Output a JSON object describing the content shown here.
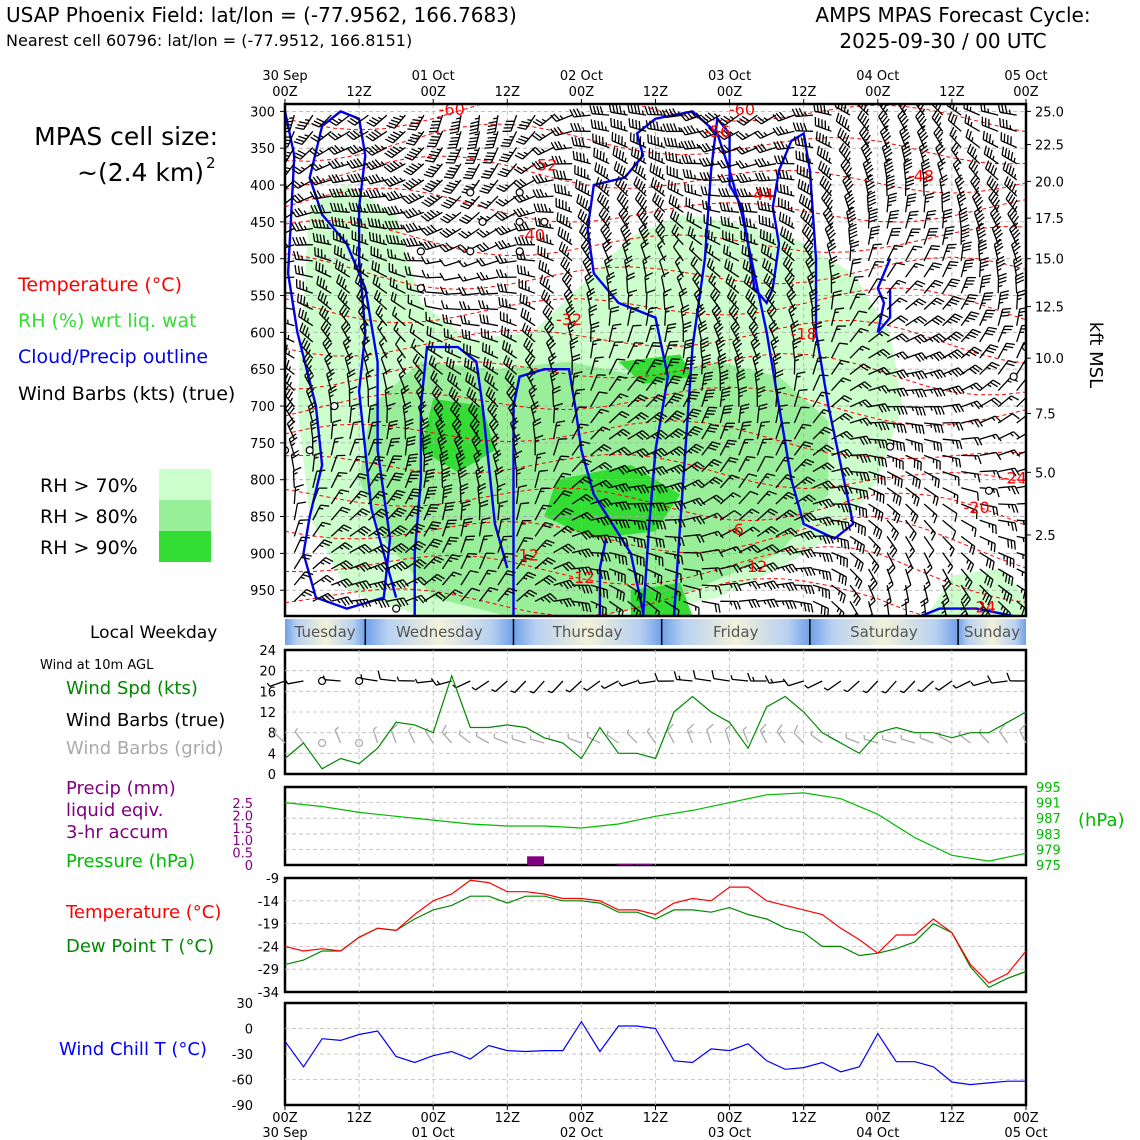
{
  "header": {
    "title_left": "USAP Phoenix Field: lat/lon = (-77.9562, 166.7683)",
    "subtitle_left": "Nearest cell 60796: lat/lon = (-77.9512, 166.8151)",
    "title_right_1": "AMPS MPAS Forecast Cycle:",
    "title_right_2": "2025-09-30 / 00 UTC"
  },
  "left_labels": {
    "cell_size_1": "MPAS cell size:",
    "cell_size_2": "~(2.4 km)",
    "cell_size_sup": "2",
    "temperature": "Temperature (°C)",
    "rh": "RH (%) wrt liq. wat",
    "cloud": "Cloud/Precip outline",
    "wind": "Wind Barbs (kts) (true)",
    "rh70": "RH > 70%",
    "rh80": "RH > 80%",
    "rh90": "RH > 90%",
    "local_weekday": "Local Weekday",
    "wind10m": "Wind at 10m AGL",
    "wind_spd": "Wind Spd (kts)",
    "wind_barbs_true": "Wind Barbs (true)",
    "wind_barbs_grid": "Wind Barbs (grid)",
    "precip_1": "Precip (mm)",
    "precip_2": "liquid eqiv.",
    "precip_3": "3-hr accum",
    "pressure": "Pressure (hPa)",
    "temp2": "Temperature (°C)",
    "dew": "Dew Point T (°C)",
    "windchill": "Wind Chill T (°C)"
  },
  "colors": {
    "temp": "#ff0000",
    "rh_label": "#33dd33",
    "cloud": "#0000ee",
    "rh70": "#ccffcc",
    "rh80": "#99ee99",
    "rh90": "#33dd33",
    "wind_spd": "#008800",
    "grid_barb": "#aaaaaa",
    "precip": "#800080",
    "pressure": "#00bb00",
    "dew": "#008800",
    "windchill": "#0000ff"
  },
  "time_axis": {
    "top_ticks": [
      {
        "t": 0,
        "l1": "30 Sep",
        "l2": "00Z"
      },
      {
        "t": 12,
        "l1": "",
        "l2": "12Z"
      },
      {
        "t": 24,
        "l1": "01 Oct",
        "l2": "00Z"
      },
      {
        "t": 36,
        "l1": "",
        "l2": "12Z"
      },
      {
        "t": 48,
        "l1": "02 Oct",
        "l2": "00Z"
      },
      {
        "t": 60,
        "l1": "",
        "l2": "12Z"
      },
      {
        "t": 72,
        "l1": "03 Oct",
        "l2": "00Z"
      },
      {
        "t": 84,
        "l1": "",
        "l2": "12Z"
      },
      {
        "t": 96,
        "l1": "04 Oct",
        "l2": "00Z"
      },
      {
        "t": 108,
        "l1": "",
        "l2": "12Z"
      },
      {
        "t": 120,
        "l1": "05 Oct",
        "l2": "00Z"
      }
    ],
    "bottom_ticks": [
      {
        "t": 0,
        "l1": "00Z",
        "l2": "30 Sep"
      },
      {
        "t": 12,
        "l1": "12Z",
        "l2": ""
      },
      {
        "t": 24,
        "l1": "00Z",
        "l2": "01 Oct"
      },
      {
        "t": 36,
        "l1": "12Z",
        "l2": ""
      },
      {
        "t": 48,
        "l1": "00Z",
        "l2": "02 Oct"
      },
      {
        "t": 60,
        "l1": "12Z",
        "l2": ""
      },
      {
        "t": 72,
        "l1": "00Z",
        "l2": "03 Oct"
      },
      {
        "t": 84,
        "l1": "12Z",
        "l2": ""
      },
      {
        "t": 96,
        "l1": "00Z",
        "l2": "04 Oct"
      },
      {
        "t": 108,
        "l1": "12Z",
        "l2": ""
      },
      {
        "t": 120,
        "l1": "00Z",
        "l2": "05 Oct"
      }
    ]
  },
  "weekdays": [
    {
      "name": "Tuesday",
      "start": 0,
      "end": 13
    },
    {
      "name": "Wednesday",
      "start": 13,
      "end": 37
    },
    {
      "name": "Thursday",
      "start": 37,
      "end": 61
    },
    {
      "name": "Friday",
      "start": 61,
      "end": 85
    },
    {
      "name": "Saturday",
      "start": 85,
      "end": 109
    },
    {
      "name": "Sunday",
      "start": 109,
      "end": 120
    }
  ],
  "chart_data": [
    {
      "type": "heatmap",
      "name": "time-height cross section",
      "x_range_hours": [
        0,
        120
      ],
      "y_pressure_ticks": [
        300,
        350,
        400,
        450,
        500,
        550,
        600,
        650,
        700,
        750,
        800,
        850,
        900,
        950
      ],
      "y_pressure_range": [
        290,
        985
      ],
      "right_kft_ticks": [
        {
          "p": 300,
          "l": "25.0"
        },
        {
          "p": 345,
          "l": "22.5"
        },
        {
          "p": 395,
          "l": "20.0"
        },
        {
          "p": 445,
          "l": "17.5"
        },
        {
          "p": 500,
          "l": "15.0"
        },
        {
          "p": 565,
          "l": "12.5"
        },
        {
          "p": 635,
          "l": "10.0"
        },
        {
          "p": 710,
          "l": "7.5"
        },
        {
          "p": 790,
          "l": "5.0"
        },
        {
          "p": 875,
          "l": "2.5"
        }
      ],
      "right_axis_label": "kft MSL",
      "temperature_labels": [
        {
          "t": 27,
          "p": 305,
          "l": "-60"
        },
        {
          "t": 42,
          "p": 380,
          "l": "-52"
        },
        {
          "t": 40,
          "p": 475,
          "l": "-40"
        },
        {
          "t": 46,
          "p": 590,
          "l": "-32"
        },
        {
          "t": 74,
          "p": 305,
          "l": "-60"
        },
        {
          "t": 70,
          "p": 335,
          "l": "-56"
        },
        {
          "t": 77,
          "p": 420,
          "l": "-44"
        },
        {
          "t": 103,
          "p": 395,
          "l": "-48"
        },
        {
          "t": 84,
          "p": 610,
          "l": "-18"
        },
        {
          "t": 39,
          "p": 910,
          "l": "-12"
        },
        {
          "t": 48,
          "p": 940,
          "l": "-12"
        },
        {
          "t": 76,
          "p": 925,
          "l": "-12"
        },
        {
          "t": 73,
          "p": 875,
          "l": "-6"
        },
        {
          "t": 112,
          "p": 845,
          "l": "-20"
        },
        {
          "t": 118,
          "p": 805,
          "l": "-24"
        },
        {
          "t": 113,
          "p": 980,
          "l": "-24"
        }
      ],
      "rh_thresholds": [
        "RH > 70%",
        "RH > 80%",
        "RH > 90%"
      ]
    },
    {
      "type": "line",
      "name": "Wind speed at 10m",
      "ylabel": "Wind Spd (kts)",
      "ylim": [
        0,
        24
      ],
      "yticks": [
        0,
        4,
        8,
        12,
        16,
        20,
        24
      ],
      "x": [
        0,
        3,
        6,
        9,
        12,
        15,
        18,
        21,
        24,
        27,
        30,
        33,
        36,
        39,
        42,
        45,
        48,
        51,
        54,
        57,
        60,
        63,
        66,
        69,
        72,
        75,
        78,
        81,
        84,
        87,
        90,
        93,
        96,
        99,
        102,
        105,
        108,
        111,
        114,
        117,
        120
      ],
      "values": [
        3,
        6,
        1,
        3,
        2,
        5,
        10,
        9.5,
        8,
        19,
        9,
        9,
        9.5,
        9,
        7,
        6,
        3,
        9,
        4,
        4,
        3,
        12,
        15,
        12,
        10,
        5,
        13,
        15,
        12,
        8,
        6,
        4,
        8,
        9,
        8,
        8,
        7,
        8,
        8,
        10,
        12
      ]
    },
    {
      "type": "line",
      "name": "Pressure",
      "ylabel": "Pressure (hPa)",
      "y_right_ticks": [
        975,
        979,
        983,
        987,
        991,
        995
      ],
      "y_left_precip_ticks": [
        "0",
        "0.5",
        "1.0",
        "1.5",
        "2.0",
        "2.5"
      ],
      "unit_label": "(hPa)",
      "x": [
        0,
        6,
        12,
        18,
        24,
        30,
        36,
        42,
        48,
        54,
        60,
        66,
        72,
        78,
        84,
        90,
        96,
        102,
        108,
        114,
        120
      ],
      "values": [
        991,
        990,
        988.5,
        987.5,
        986.5,
        985.5,
        985,
        985,
        984.5,
        985.5,
        987.5,
        989,
        991,
        993,
        993.5,
        992,
        988,
        982,
        977.5,
        976,
        978
      ],
      "precip_bars": [
        {
          "t": 40.5,
          "mm": 0.35
        },
        {
          "t": 55,
          "mm": 0.05
        },
        {
          "t": 58,
          "mm": 0.05
        }
      ]
    },
    {
      "type": "line",
      "name": "Temperature and dew point",
      "ylim": [
        -34,
        -9
      ],
      "yticks": [
        -9,
        -14,
        -19,
        -24,
        -29,
        -34
      ],
      "x": [
        0,
        3,
        6,
        9,
        12,
        15,
        18,
        21,
        24,
        27,
        30,
        33,
        36,
        39,
        42,
        45,
        48,
        51,
        54,
        57,
        60,
        63,
        66,
        69,
        72,
        75,
        78,
        81,
        84,
        87,
        90,
        93,
        96,
        99,
        102,
        105,
        108,
        111,
        114,
        117,
        120
      ],
      "series": [
        {
          "name": "Temperature",
          "values": [
            -24,
            -25,
            -24.5,
            -25,
            -22,
            -20,
            -20.5,
            -17,
            -14,
            -12.5,
            -9.5,
            -10,
            -12,
            -12,
            -12.5,
            -13.5,
            -13.5,
            -14,
            -16,
            -16,
            -17,
            -14.5,
            -13.5,
            -14,
            -11,
            -11,
            -14,
            -15,
            -16,
            -17,
            -20,
            -22.5,
            -25.5,
            -21.5,
            -21.5,
            -18,
            -21,
            -28,
            -32,
            -30,
            -25
          ]
        },
        {
          "name": "Dew Point",
          "values": [
            -28,
            -27,
            -25,
            -25,
            -22,
            -20,
            -20.5,
            -18,
            -16,
            -15,
            -13,
            -13,
            -14.5,
            -13,
            -13,
            -14,
            -14,
            -14.5,
            -16.5,
            -16.5,
            -18,
            -16,
            -16,
            -16.5,
            -15.5,
            -17,
            -18,
            -20,
            -21,
            -24,
            -24,
            -26,
            -25.5,
            -24.5,
            -23,
            -19,
            -21,
            -28.5,
            -33,
            -31,
            -29.5
          ]
        }
      ]
    },
    {
      "type": "line",
      "name": "Wind chill",
      "ylabel": "Wind Chill T (°C)",
      "ylim": [
        -90,
        30
      ],
      "yticks": [
        30,
        0,
        -30,
        -60,
        -90
      ],
      "x": [
        0,
        3,
        6,
        9,
        12,
        15,
        18,
        21,
        24,
        27,
        30,
        33,
        36,
        39,
        42,
        45,
        48,
        51,
        54,
        57,
        60,
        63,
        66,
        69,
        72,
        75,
        78,
        81,
        84,
        87,
        90,
        93,
        96,
        99,
        102,
        105,
        108,
        111,
        114,
        117,
        120
      ],
      "values": [
        -15,
        -45,
        -12,
        -14,
        -7,
        -3,
        -33,
        -40,
        -32,
        -27,
        -36,
        -20,
        -26,
        -27,
        -26,
        -26,
        8,
        -27,
        3,
        3,
        0,
        -38,
        -40,
        -24,
        -26,
        -18,
        -38,
        -48,
        -46,
        -40,
        -51,
        -45,
        -6,
        -39,
        -39,
        -45,
        -63,
        -66,
        -64,
        -62,
        -62
      ]
    }
  ]
}
